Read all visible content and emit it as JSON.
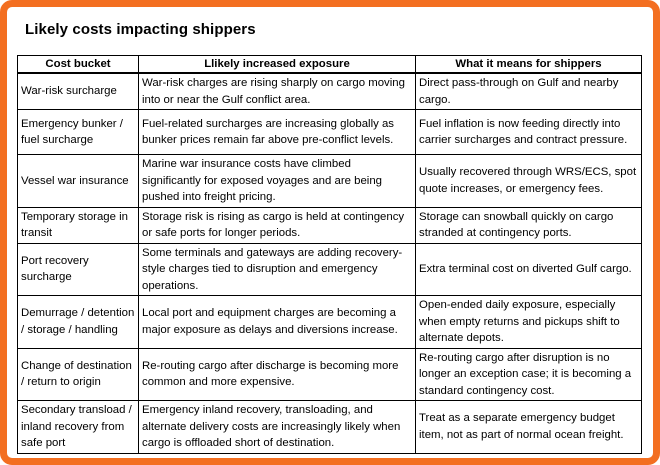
{
  "title": "Likely costs impacting shippers",
  "table": {
    "headers": [
      "Cost bucket",
      "Llikely increased exposure",
      "What it means for shippers"
    ],
    "rows": [
      {
        "bucket": "War-risk surcharge",
        "exposure": "War-risk charges are rising sharply on cargo moving into or near the Gulf conflict area.",
        "meaning": "Direct pass-through on Gulf and nearby cargo."
      },
      {
        "bucket": "Emergency bunker / fuel surcharge",
        "exposure": "Fuel-related surcharges are increasing globally as bunker prices remain far above pre-conflict levels.",
        "meaning": "Fuel inflation is now feeding directly into carrier surcharges and contract pressure."
      },
      {
        "bucket": "Vessel war insurance",
        "exposure": "Marine war insurance costs have climbed significantly for exposed voyages and are being pushed into freight pricing.",
        "meaning": "Usually recovered through WRS/ECS, spot quote increases, or emergency fees."
      },
      {
        "bucket": "Temporary storage in transit",
        "exposure": "Storage risk is rising as cargo is held at contingency or safe ports for longer periods.",
        "meaning": "Storage can snowball quickly on cargo stranded at contingency ports."
      },
      {
        "bucket": "Port recovery surcharge",
        "exposure": "Some terminals and gateways are adding recovery-style charges tied to disruption and emergency operations.",
        "meaning": "Extra terminal cost on diverted Gulf cargo."
      },
      {
        "bucket": "Demurrage / detention / storage / handling",
        "exposure": "Local port and equipment charges are becoming a major exposure as delays and diversions increase.",
        "meaning": "Open-ended daily exposure, especially when empty returns and pickups shift to alternate depots."
      },
      {
        "bucket": "Change of destination / return to origin",
        "exposure": "Re-routing cargo after discharge is becoming more common and more expensive.",
        "meaning": "Re-routing cargo after disruption is no longer an exception case; it is becoming a standard contingency cost."
      },
      {
        "bucket": "Secondary transload / inland recovery from safe port",
        "exposure": "Emergency inland recovery, transloading, and alternate delivery costs are increasingly likely when cargo is offloaded short of destination.",
        "meaning": "Treat as a separate emergency budget item, not as part of normal ocean freight."
      }
    ]
  },
  "colors": {
    "frame_border": "#f36f21",
    "text": "#000000",
    "background": "#ffffff"
  }
}
